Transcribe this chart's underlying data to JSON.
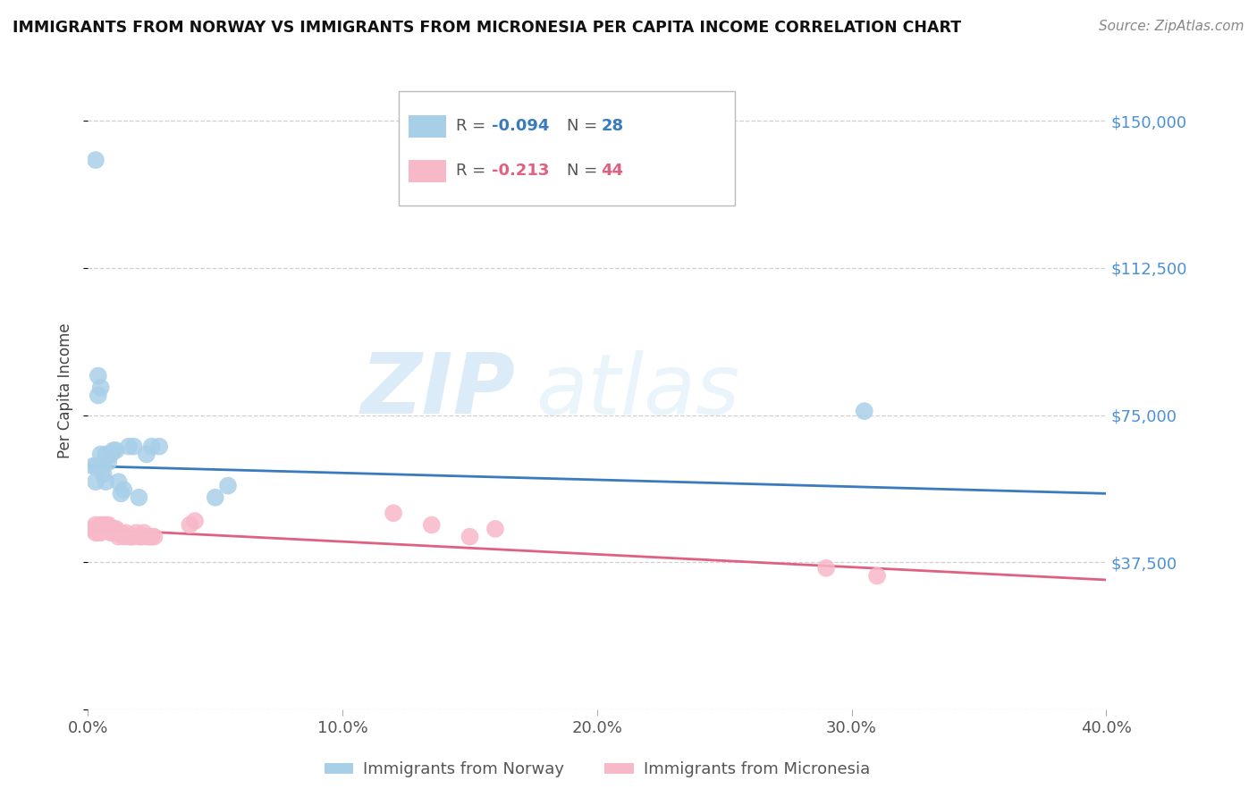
{
  "title": "IMMIGRANTS FROM NORWAY VS IMMIGRANTS FROM MICRONESIA PER CAPITA INCOME CORRELATION CHART",
  "source": "Source: ZipAtlas.com",
  "ylabel": "Per Capita Income",
  "xlim": [
    0.0,
    0.4
  ],
  "ylim": [
    0,
    162500
  ],
  "yticks": [
    0,
    37500,
    75000,
    112500,
    150000
  ],
  "ytick_labels": [
    "",
    "$37,500",
    "$75,000",
    "$112,500",
    "$150,000"
  ],
  "xticks": [
    0.0,
    0.1,
    0.2,
    0.3,
    0.4
  ],
  "xtick_labels": [
    "0.0%",
    "10.0%",
    "20.0%",
    "30.0%",
    "40.0%"
  ],
  "norway_color": "#a8cfe8",
  "micronesia_color": "#f7b8c8",
  "norway_line_color": "#3a7abf",
  "micronesia_line_color": "#e06080",
  "norway_R": -0.094,
  "norway_N": 28,
  "micronesia_R": -0.213,
  "micronesia_N": 44,
  "norway_x": [
    0.002,
    0.003,
    0.003,
    0.004,
    0.004,
    0.005,
    0.005,
    0.006,
    0.006,
    0.007,
    0.007,
    0.008,
    0.009,
    0.01,
    0.011,
    0.012,
    0.013,
    0.014,
    0.016,
    0.018,
    0.02,
    0.023,
    0.025,
    0.028,
    0.05,
    0.055,
    0.305,
    0.003
  ],
  "norway_y": [
    62000,
    58000,
    62000,
    80000,
    85000,
    82000,
    65000,
    62000,
    60000,
    58000,
    65000,
    63000,
    65000,
    66000,
    66000,
    58000,
    55000,
    56000,
    67000,
    67000,
    54000,
    65000,
    67000,
    67000,
    54000,
    57000,
    76000,
    140000
  ],
  "micronesia_x": [
    0.002,
    0.003,
    0.003,
    0.004,
    0.004,
    0.005,
    0.005,
    0.005,
    0.006,
    0.006,
    0.007,
    0.007,
    0.008,
    0.008,
    0.009,
    0.009,
    0.01,
    0.01,
    0.011,
    0.011,
    0.012,
    0.012,
    0.013,
    0.014,
    0.015,
    0.016,
    0.017,
    0.018,
    0.019,
    0.02,
    0.021,
    0.022,
    0.023,
    0.024,
    0.025,
    0.026,
    0.04,
    0.042,
    0.12,
    0.135,
    0.16,
    0.15,
    0.29,
    0.31
  ],
  "micronesia_y": [
    46000,
    47000,
    45000,
    46000,
    45000,
    47000,
    46000,
    45000,
    47000,
    46000,
    47000,
    46000,
    47000,
    46000,
    46000,
    45000,
    46000,
    45000,
    46000,
    45000,
    45000,
    44000,
    45000,
    44000,
    45000,
    44000,
    44000,
    44000,
    45000,
    44000,
    44000,
    45000,
    44000,
    44000,
    44000,
    44000,
    47000,
    48000,
    50000,
    47000,
    46000,
    44000,
    36000,
    34000
  ],
  "watermark_zip": "ZIP",
  "watermark_atlas": "atlas",
  "background_color": "#ffffff",
  "grid_color": "#d0d0d0",
  "legend_norway_text": "R =  -0.094   N = 28",
  "legend_micronesia_text": "R =  -0.213   N = 44",
  "legend_norway_label": "Immigrants from Norway",
  "legend_micronesia_label": "Immigrants from Micronesia"
}
